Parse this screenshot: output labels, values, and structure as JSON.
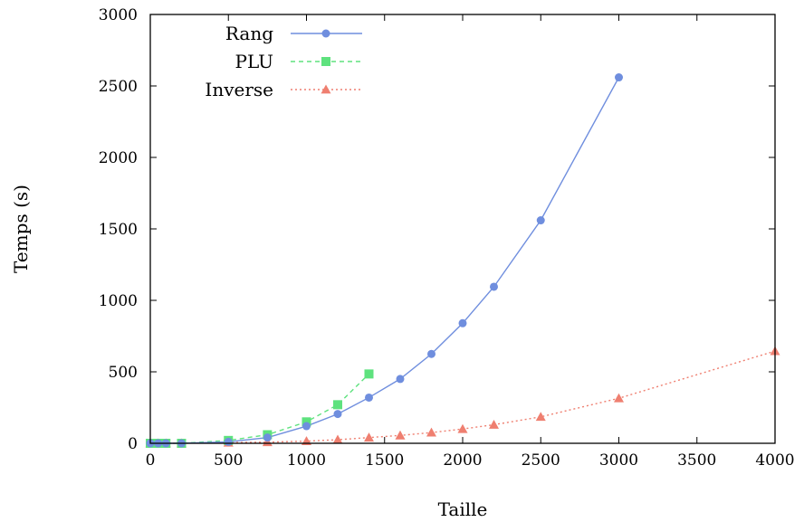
{
  "chart_data": {
    "type": "line",
    "title": "",
    "xlabel": "Taille",
    "ylabel": "Temps (s)",
    "xlim": [
      0,
      4000
    ],
    "ylim": [
      0,
      3000
    ],
    "xticks": [
      0,
      500,
      1000,
      1500,
      2000,
      2500,
      3000,
      3500,
      4000
    ],
    "yticks": [
      0,
      500,
      1000,
      1500,
      2000,
      2500,
      3000
    ],
    "grid": false,
    "legend_position": "top-left",
    "series": [
      {
        "name": "Rang",
        "color": "#6f8ede",
        "marker": "circle",
        "line_style": "solid",
        "points": [
          [
            0,
            0
          ],
          [
            50,
            0
          ],
          [
            100,
            0
          ],
          [
            200,
            0
          ],
          [
            500,
            10
          ],
          [
            750,
            40
          ],
          [
            1000,
            120
          ],
          [
            1200,
            205
          ],
          [
            1400,
            320
          ],
          [
            1600,
            450
          ],
          [
            1800,
            625
          ],
          [
            2000,
            840
          ],
          [
            2200,
            1095
          ],
          [
            2500,
            1560
          ],
          [
            3000,
            2560
          ]
        ]
      },
      {
        "name": "PLU",
        "color": "#5ee27e",
        "marker": "square",
        "line_style": "dashed",
        "points": [
          [
            0,
            0
          ],
          [
            50,
            0
          ],
          [
            100,
            0
          ],
          [
            200,
            0
          ],
          [
            500,
            20
          ],
          [
            750,
            60
          ],
          [
            1000,
            150
          ],
          [
            1200,
            270
          ],
          [
            1400,
            485
          ]
        ]
      },
      {
        "name": "Inverse",
        "color": "#ef7f70",
        "marker": "triangle",
        "line_style": "dotted",
        "points": [
          [
            0,
            0
          ],
          [
            50,
            0
          ],
          [
            100,
            0
          ],
          [
            200,
            0
          ],
          [
            500,
            5
          ],
          [
            750,
            8
          ],
          [
            1000,
            15
          ],
          [
            1200,
            25
          ],
          [
            1400,
            40
          ],
          [
            1600,
            55
          ],
          [
            1800,
            75
          ],
          [
            2000,
            100
          ],
          [
            2200,
            130
          ],
          [
            2500,
            185
          ],
          [
            3000,
            315
          ],
          [
            4000,
            645
          ]
        ]
      }
    ]
  }
}
